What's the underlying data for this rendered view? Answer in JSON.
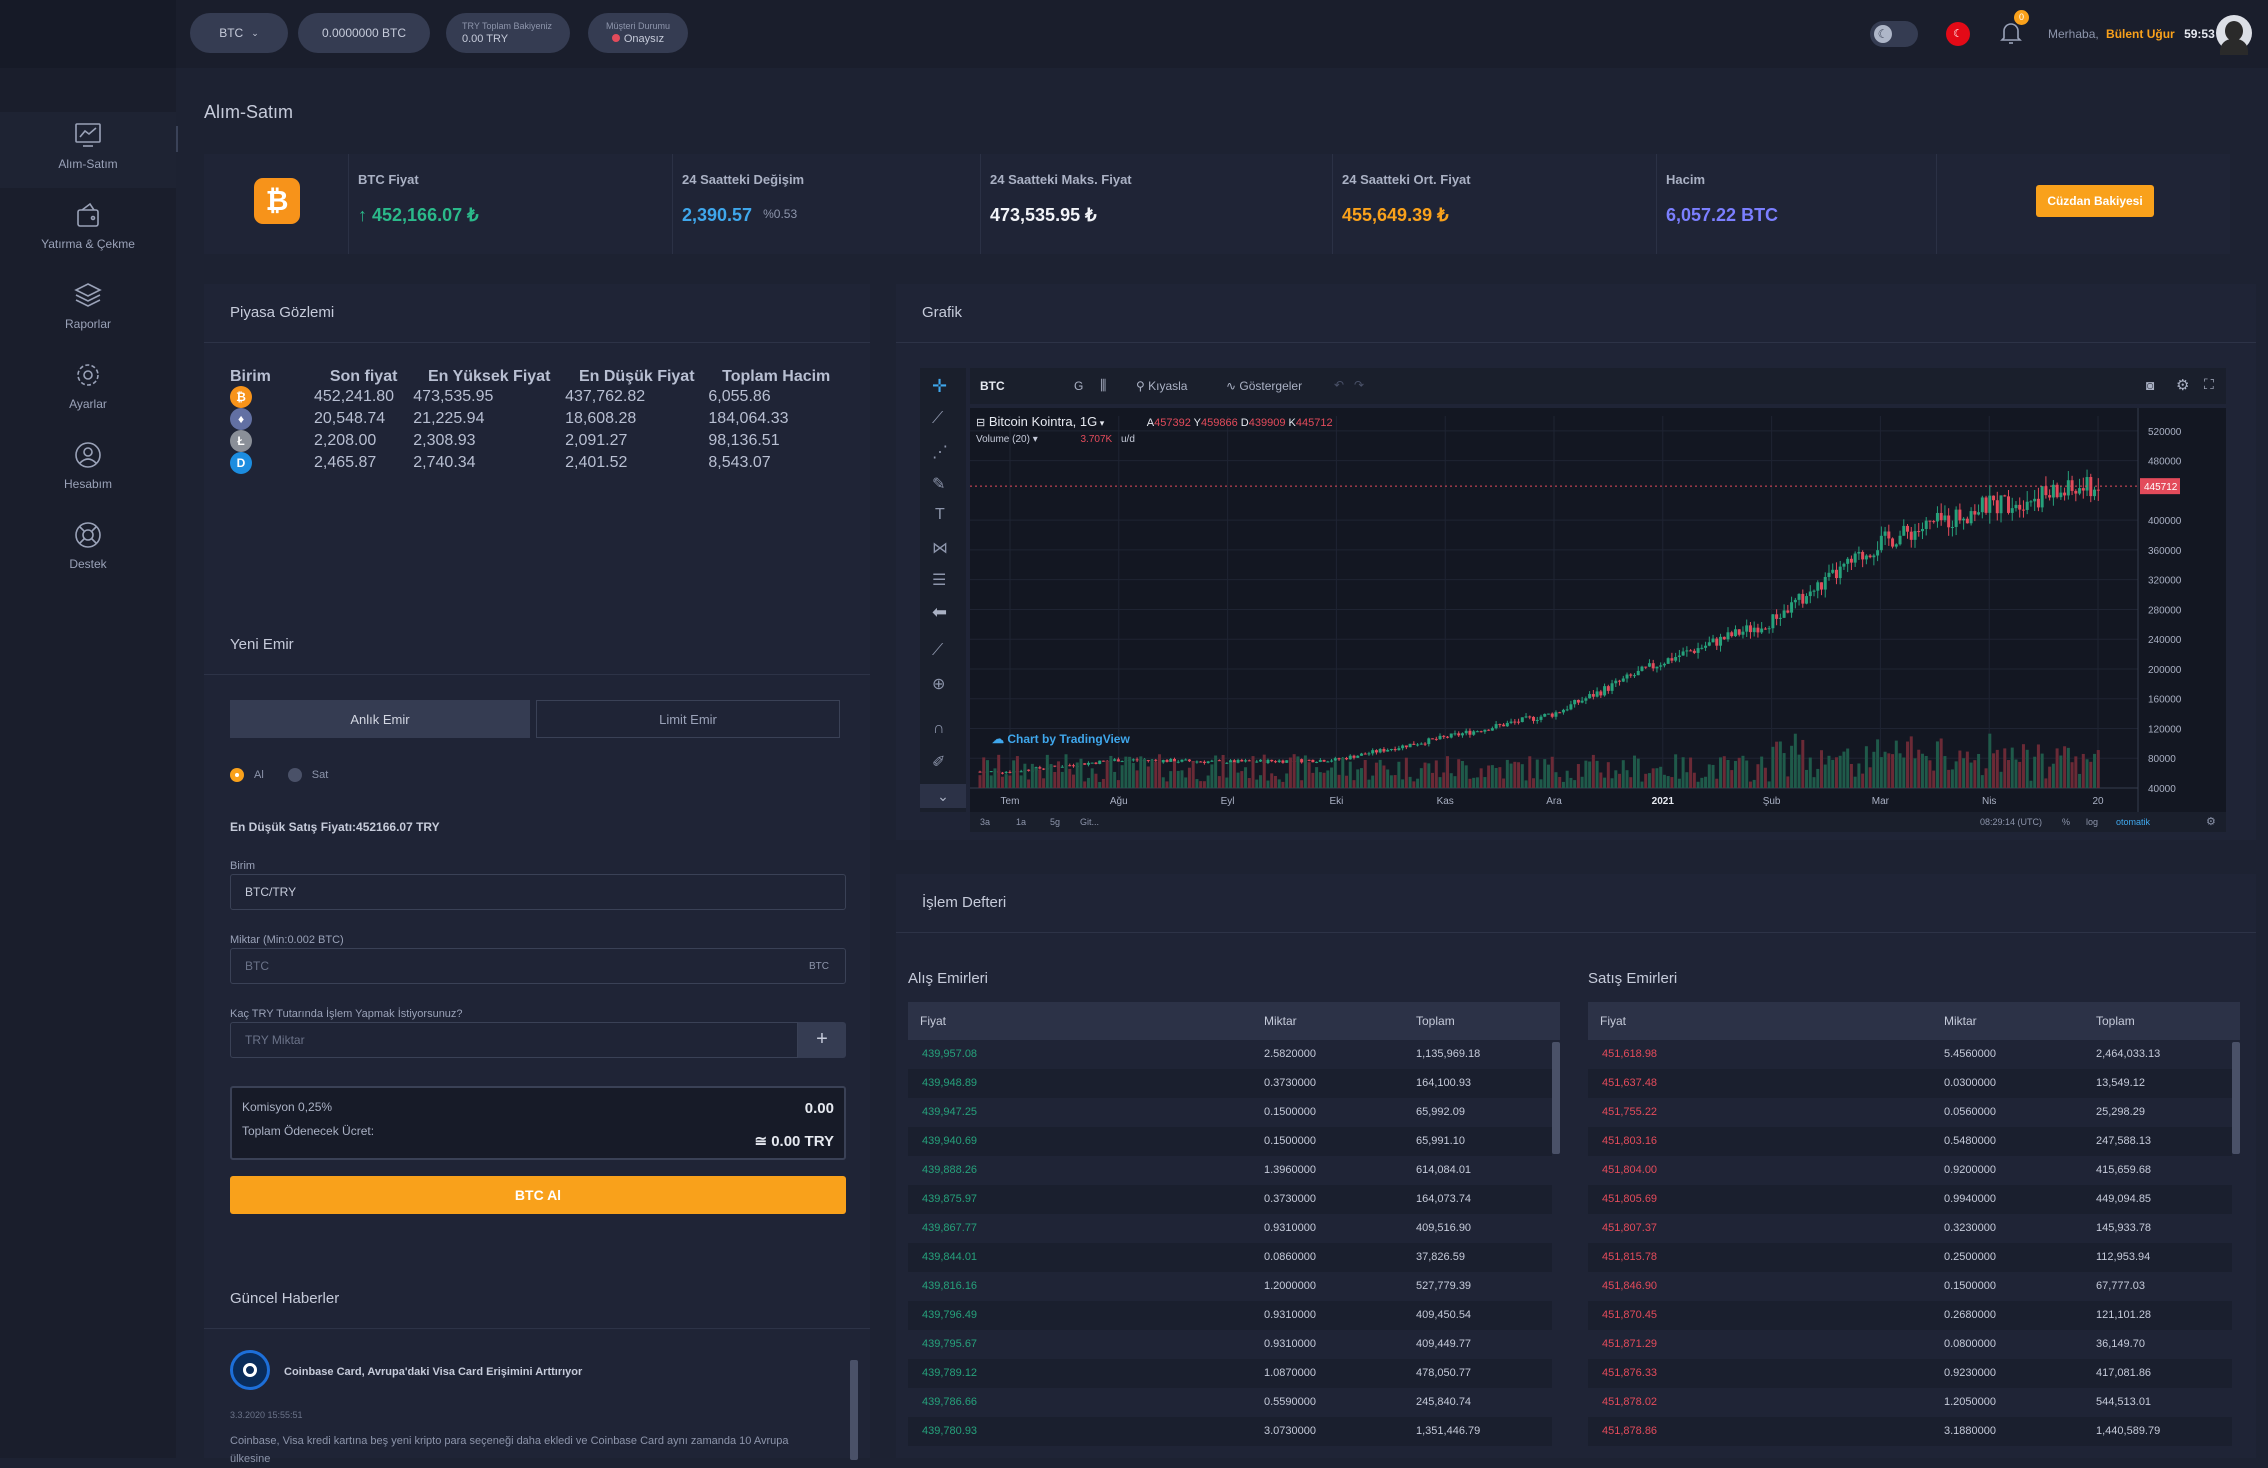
{
  "topbar": {
    "currency_select": "BTC",
    "btc_balance": "0.0000000 BTC",
    "try_balance_label": "TRY Toplam Bakiyeniz",
    "try_balance_value": "0.00 TRY",
    "customer_status_label": "Müşteri Durumu",
    "customer_status_value": "Onaysız",
    "notification_count": "0",
    "greeting": "Merhaba,",
    "user_name": "Bülent Uğur",
    "session_timer": "59:53"
  },
  "sidebar": {
    "items": [
      {
        "label": "Alım-Satım",
        "icon": "chart-line-icon"
      },
      {
        "label": "Yatırma & Çekme",
        "icon": "wallet-icon"
      },
      {
        "label": "Raporlar",
        "icon": "layers-icon"
      },
      {
        "label": "Ayarlar",
        "icon": "gear-icon"
      },
      {
        "label": "Hesabım",
        "icon": "user-circle-icon"
      },
      {
        "label": "Destek",
        "icon": "lifebuoy-icon"
      }
    ]
  },
  "page": {
    "title": "Alım-Satım"
  },
  "stats": {
    "btc_price_label": "BTC Fiyat",
    "btc_price_value": "452,166.07 ₺",
    "change_label": "24 Saatteki Değişim",
    "change_value": "2,390.57",
    "change_pct": "%0.53",
    "max_label": "24 Saatteki Maks. Fiyat",
    "max_value": "473,535.95 ₺",
    "avg_label": "24 Saatteki Ort. Fiyat",
    "avg_value": "455,649.39 ₺",
    "volume_label": "Hacim",
    "volume_value": "6,057.22 BTC",
    "wallet_button": "Cüzdan Bakiyesi"
  },
  "market": {
    "title": "Piyasa Gözlemi",
    "headers": [
      "Birim",
      "Son fiyat",
      "En Yüksek Fiyat",
      "En Düşük Fiyat",
      "Toplam Hacim"
    ],
    "rows": [
      {
        "coin": "BTC",
        "color": "#f7931a",
        "symbol": "₿",
        "last": "452,241.80",
        "high": "473,535.95",
        "low": "437,762.82",
        "volume": "6,055.86"
      },
      {
        "coin": "ETH",
        "color": "#6270a3",
        "symbol": "♦",
        "last": "20,548.74",
        "high": "21,225.94",
        "low": "18,608.28",
        "volume": "184,064.33"
      },
      {
        "coin": "LTC",
        "color": "#8a8f98",
        "symbol": "Ł",
        "last": "2,208.00",
        "high": "2,308.93",
        "low": "2,091.27",
        "volume": "98,136.51"
      },
      {
        "coin": "DASH",
        "color": "#1c8de0",
        "symbol": "D",
        "last": "2,465.87",
        "high": "2,740.34",
        "low": "2,401.52",
        "volume": "8,543.07"
      }
    ]
  },
  "order": {
    "title": "Yeni Emir",
    "tab_market": "Anlık Emir",
    "tab_limit": "Limit Emir",
    "radio_buy": "Al",
    "radio_sell": "Sat",
    "lowest_sell": "En Düşük Satış Fiyatı:452166.07 TRY",
    "unit_label": "Birim",
    "unit_value": "BTC/TRY",
    "amount_label": "Miktar (Min:0.002 BTC)",
    "amount_placeholder": "BTC",
    "amount_suffix": "BTC",
    "try_label": "Kaç TRY Tutarında İşlem Yapmak İstiyorsunuz?",
    "try_placeholder": "TRY Miktar",
    "commission_label": "Komisyon 0,25%",
    "commission_value": "0.00",
    "total_label": "Toplam Ödenecek Ücret:",
    "total_value": "≅ 0.00 TRY",
    "submit": "BTC Al"
  },
  "news": {
    "title": "Güncel Haberler",
    "item_title": "Coinbase Card, Avrupa'daki Visa Card Erişimini Arttırıyor",
    "item_date": "3.3.2020 15:55:51",
    "item_text": "Coinbase, Visa kredi kartına beş yeni kripto para seçeneği daha ekledi ve Coinbase Card aynı zamanda 10 Avrupa ülkesine"
  },
  "chart_panel": {
    "title": "Grafik",
    "symbol": "BTC",
    "interval": "G",
    "compare": "Kıyasla",
    "indicators": "Göstergeler",
    "legend_name": "Bitcoin Kointra, 1G",
    "ohlc": {
      "A": "457392",
      "Y": "459866",
      "D": "439909",
      "K": "445712"
    },
    "volume_label": "Volume (20)",
    "volume_value": "3.707K",
    "volume_suffix": "u/d",
    "watermark": "Chart by TradingView",
    "ranges": [
      "3a",
      "1a",
      "5g",
      "Git..."
    ],
    "clock": "08:29:14 (UTC)",
    "opt_pct": "%",
    "opt_log": "log",
    "opt_auto": "otomatik"
  },
  "chart_data": {
    "type": "candlestick",
    "x_labels": [
      "Tem",
      "Ağu",
      "Eyl",
      "Eki",
      "Kas",
      "Ara",
      "2021",
      "Şub",
      "Mar",
      "Nis",
      "20"
    ],
    "y_ticks": [
      40000,
      80000,
      120000,
      160000,
      200000,
      240000,
      280000,
      320000,
      360000,
      400000,
      480000,
      520000
    ],
    "ylim": [
      40000,
      540000
    ],
    "last_price": 445712,
    "close_series": [
      {
        "t": "Tem",
        "v": 62000
      },
      {
        "t": "Ağu",
        "v": 78000
      },
      {
        "t": "Eyl",
        "v": 75000
      },
      {
        "t": "Eki",
        "v": 78000
      },
      {
        "t": "Kas",
        "v": 108000
      },
      {
        "t": "Ara",
        "v": 140000
      },
      {
        "t": "2021",
        "v": 210000
      },
      {
        "t": "Şub",
        "v": 265000
      },
      {
        "t": "Mar",
        "v": 370000
      },
      {
        "t": "Nis",
        "v": 420000
      },
      {
        "t": "20",
        "v": 445712
      }
    ]
  },
  "orderbook": {
    "title": "İşlem Defteri",
    "buy_title": "Alış Emirleri",
    "sell_title": "Satış Emirleri",
    "headers": [
      "Fiyat",
      "Miktar",
      "Toplam"
    ],
    "buys": [
      [
        "439,957.08",
        "2.5820000",
        "1,135,969.18"
      ],
      [
        "439,948.89",
        "0.3730000",
        "164,100.93"
      ],
      [
        "439,947.25",
        "0.1500000",
        "65,992.09"
      ],
      [
        "439,940.69",
        "0.1500000",
        "65,991.10"
      ],
      [
        "439,888.26",
        "1.3960000",
        "614,084.01"
      ],
      [
        "439,875.97",
        "0.3730000",
        "164,073.74"
      ],
      [
        "439,867.77",
        "0.9310000",
        "409,516.90"
      ],
      [
        "439,844.01",
        "0.0860000",
        "37,826.59"
      ],
      [
        "439,816.16",
        "1.2000000",
        "527,779.39"
      ],
      [
        "439,796.49",
        "0.9310000",
        "409,450.54"
      ],
      [
        "439,795.67",
        "0.9310000",
        "409,449.77"
      ],
      [
        "439,789.12",
        "1.0870000",
        "478,050.77"
      ],
      [
        "439,786.66",
        "0.5590000",
        "245,840.74"
      ],
      [
        "439,780.93",
        "3.0730000",
        "1,351,446.79"
      ]
    ],
    "sells": [
      [
        "451,618.98",
        "5.4560000",
        "2,464,033.13"
      ],
      [
        "451,637.48",
        "0.0300000",
        "13,549.12"
      ],
      [
        "451,755.22",
        "0.0560000",
        "25,298.29"
      ],
      [
        "451,803.16",
        "0.5480000",
        "247,588.13"
      ],
      [
        "451,804.00",
        "0.9200000",
        "415,659.68"
      ],
      [
        "451,805.69",
        "0.9940000",
        "449,094.85"
      ],
      [
        "451,807.37",
        "0.3230000",
        "145,933.78"
      ],
      [
        "451,815.78",
        "0.2500000",
        "112,953.94"
      ],
      [
        "451,846.90",
        "0.1500000",
        "67,777.03"
      ],
      [
        "451,870.45",
        "0.2680000",
        "121,101.28"
      ],
      [
        "451,871.29",
        "0.0800000",
        "36,149.70"
      ],
      [
        "451,876.33",
        "0.9230000",
        "417,081.86"
      ],
      [
        "451,878.02",
        "1.2050000",
        "544,513.01"
      ],
      [
        "451,878.86",
        "3.1880000",
        "1,440,589.79"
      ]
    ]
  },
  "colors": {
    "accent": "#f9a11b",
    "buy": "#26a17b",
    "sell": "#e34b5b",
    "up": "#2bb98a",
    "blue": "#3fa7ec",
    "purple": "#7b7fff"
  }
}
